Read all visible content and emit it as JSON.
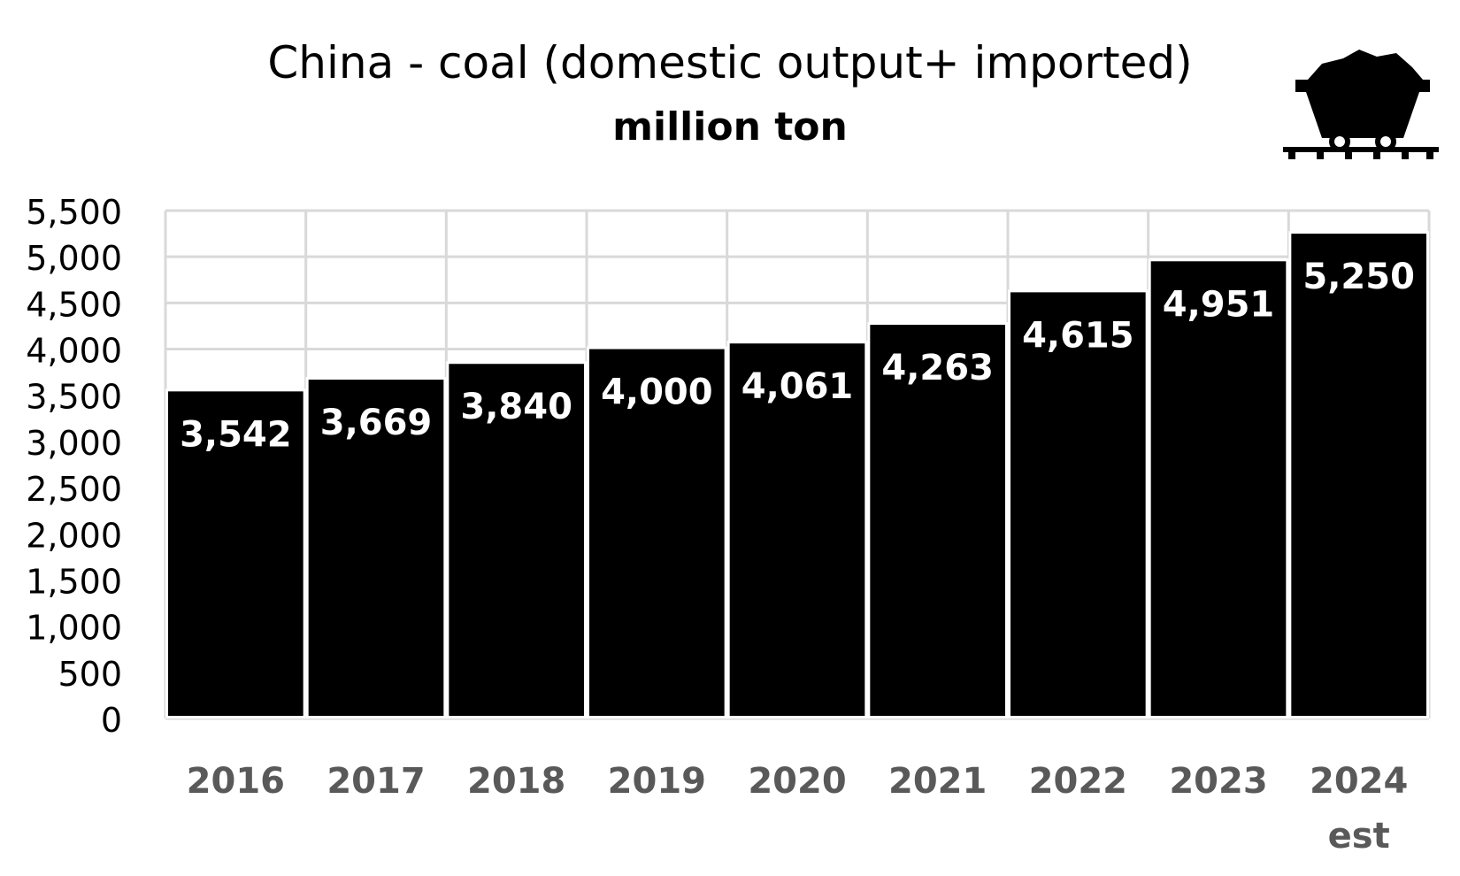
{
  "chart_data": {
    "type": "bar",
    "title": "China - coal (domestic output+ imported)",
    "subtitle": "million ton",
    "categories": [
      "2016",
      "2017",
      "2018",
      "2019",
      "2020",
      "2021",
      "2022",
      "2023",
      "2024"
    ],
    "category_sublabels": [
      "",
      "",
      "",
      "",
      "",
      "",
      "",
      "",
      "est"
    ],
    "values": [
      3542,
      3669,
      3840,
      4000,
      4061,
      4263,
      4615,
      4951,
      5250
    ],
    "data_labels": [
      "3,542",
      "3,669",
      "3,840",
      "4,000",
      "4,061",
      "4,263",
      "4,615",
      "4,951",
      "5,250"
    ],
    "ylim": [
      0,
      5500
    ],
    "yticks": [
      0,
      500,
      1000,
      1500,
      2000,
      2500,
      3000,
      3500,
      4000,
      4500,
      5000,
      5500
    ],
    "ytick_labels": [
      "0",
      "500",
      "1,000",
      "1,500",
      "2,000",
      "2,500",
      "3,000",
      "3,500",
      "4,000",
      "4,500",
      "5,000",
      "5,500"
    ],
    "xlabel": "",
    "ylabel": "",
    "grid": "both",
    "legend": "none",
    "colors": {
      "bar": "#000000",
      "bar_label": "#ffffff",
      "category_label": "#595959",
      "grid": "#d9d9d9"
    }
  },
  "icon": "coal-cart-icon"
}
